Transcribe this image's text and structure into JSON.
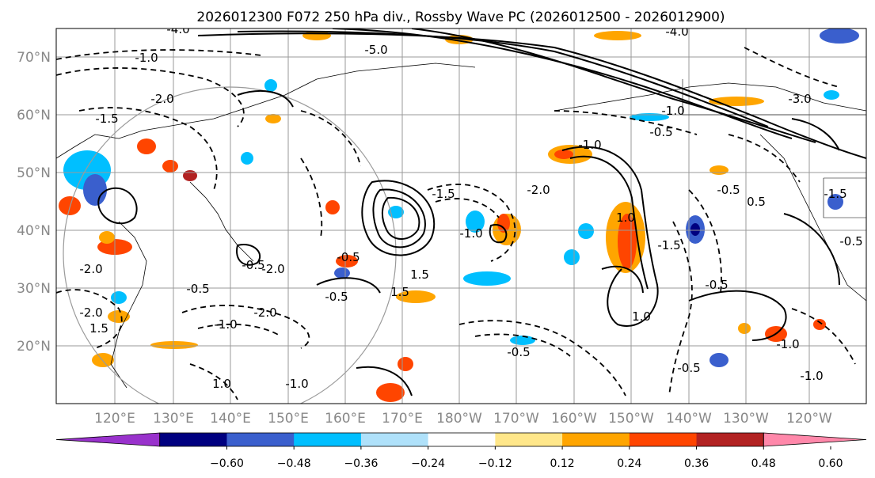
{
  "title": "2026012300 F072 250 hPa div., Rossby Wave PC (2026012500 - 2026012900)",
  "map": {
    "lat_ticks": [
      "70°N",
      "60°N",
      "50°N",
      "40°N",
      "30°N",
      "20°N"
    ],
    "lon_ticks": [
      "120°E",
      "130°E",
      "140°E",
      "150°E",
      "160°E",
      "170°E",
      "180°W",
      "170°W",
      "160°W",
      "150°W",
      "140°W",
      "130°W",
      "120°W"
    ],
    "contour_labels": [
      "-4.0",
      "-1.0",
      "-2.0",
      "-1.5",
      "-5.0",
      "-3.0",
      "-4.0",
      "-0.5",
      "-1.0",
      "-2.0",
      "-1.5",
      "-1.0",
      "-0.5",
      "-2.0",
      "-1.0",
      "-2.0",
      "-0.5",
      "1.5",
      "-0.5",
      "1.5",
      "-0.5",
      "-2.0",
      "1.0",
      "-1.5",
      "-1.0",
      "-0.5",
      "-0.5",
      "-2.0",
      "1.0",
      "-1.0",
      "0.5",
      "-1.5",
      "-0.5",
      "-1.0",
      "-0.5",
      "1.5",
      "1.0",
      "-1.0",
      "-0.5"
    ]
  },
  "colorbar": {
    "colors": [
      "#9932cc",
      "#000080",
      "#3a5fcd",
      "#00bfff",
      "#afe1fa",
      "#ffffff",
      "#ffe78a",
      "#ffa500",
      "#ff4500",
      "#b22222",
      "#ff88aa"
    ],
    "tick_labels": [
      "−0.60",
      "−0.48",
      "−0.36",
      "−0.24",
      "−0.12",
      "0.12",
      "0.24",
      "0.36",
      "0.48",
      "0.60"
    ]
  },
  "palette": {
    "contour": "#000000",
    "grid": "#9a9a9a",
    "coast": "#000000"
  }
}
